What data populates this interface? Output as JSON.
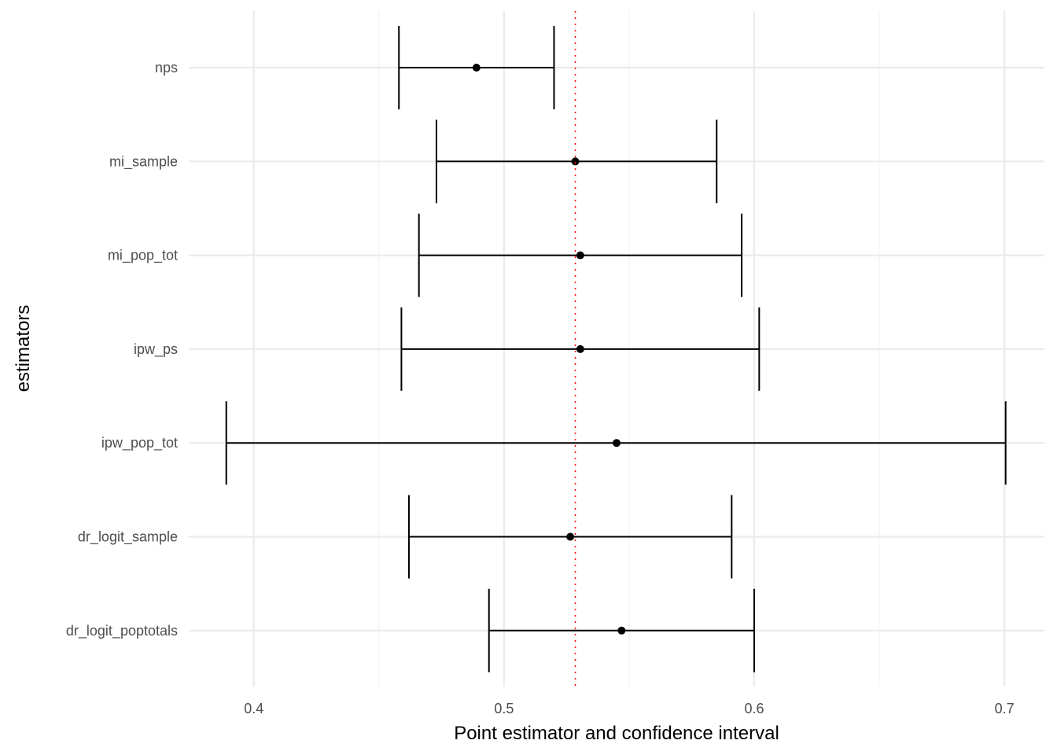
{
  "chart_data": {
    "type": "errorbar",
    "title": "",
    "xlabel": "Point estimator and confidence interval",
    "ylabel": "estimators",
    "xlim": [
      0.374,
      0.716
    ],
    "x_ticks": [
      0.4,
      0.5,
      0.6,
      0.7
    ],
    "x_tick_labels": [
      "0.4",
      "0.5",
      "0.6",
      "0.7"
    ],
    "x_minor_ticks": [
      0.45,
      0.55,
      0.65
    ],
    "grid": true,
    "legend": "none",
    "reference_line": {
      "x": 0.5285,
      "color": "#FF0000",
      "style": "dotted"
    },
    "categories": [
      "nps",
      "mi_sample",
      "mi_pop_tot",
      "ipw_ps",
      "ipw_pop_tot",
      "dr_logit_sample",
      "dr_logit_poptotals"
    ],
    "series": [
      {
        "name": "nps",
        "estimate": 0.489,
        "lower": 0.458,
        "upper": 0.52
      },
      {
        "name": "mi_sample",
        "estimate": 0.5285,
        "lower": 0.473,
        "upper": 0.585
      },
      {
        "name": "mi_pop_tot",
        "estimate": 0.5305,
        "lower": 0.466,
        "upper": 0.595
      },
      {
        "name": "ipw_ps",
        "estimate": 0.5305,
        "lower": 0.459,
        "upper": 0.602
      },
      {
        "name": "ipw_pop_tot",
        "estimate": 0.545,
        "lower": 0.389,
        "upper": 0.7005
      },
      {
        "name": "dr_logit_sample",
        "estimate": 0.5265,
        "lower": 0.462,
        "upper": 0.591
      },
      {
        "name": "dr_logit_poptotals",
        "estimate": 0.547,
        "lower": 0.494,
        "upper": 0.6
      }
    ],
    "colors": {
      "marks": "#000000",
      "grid_major": "#EBEBEB",
      "grid_minor": "#F2F2F2",
      "tick_text": "#4D4D4D"
    }
  }
}
